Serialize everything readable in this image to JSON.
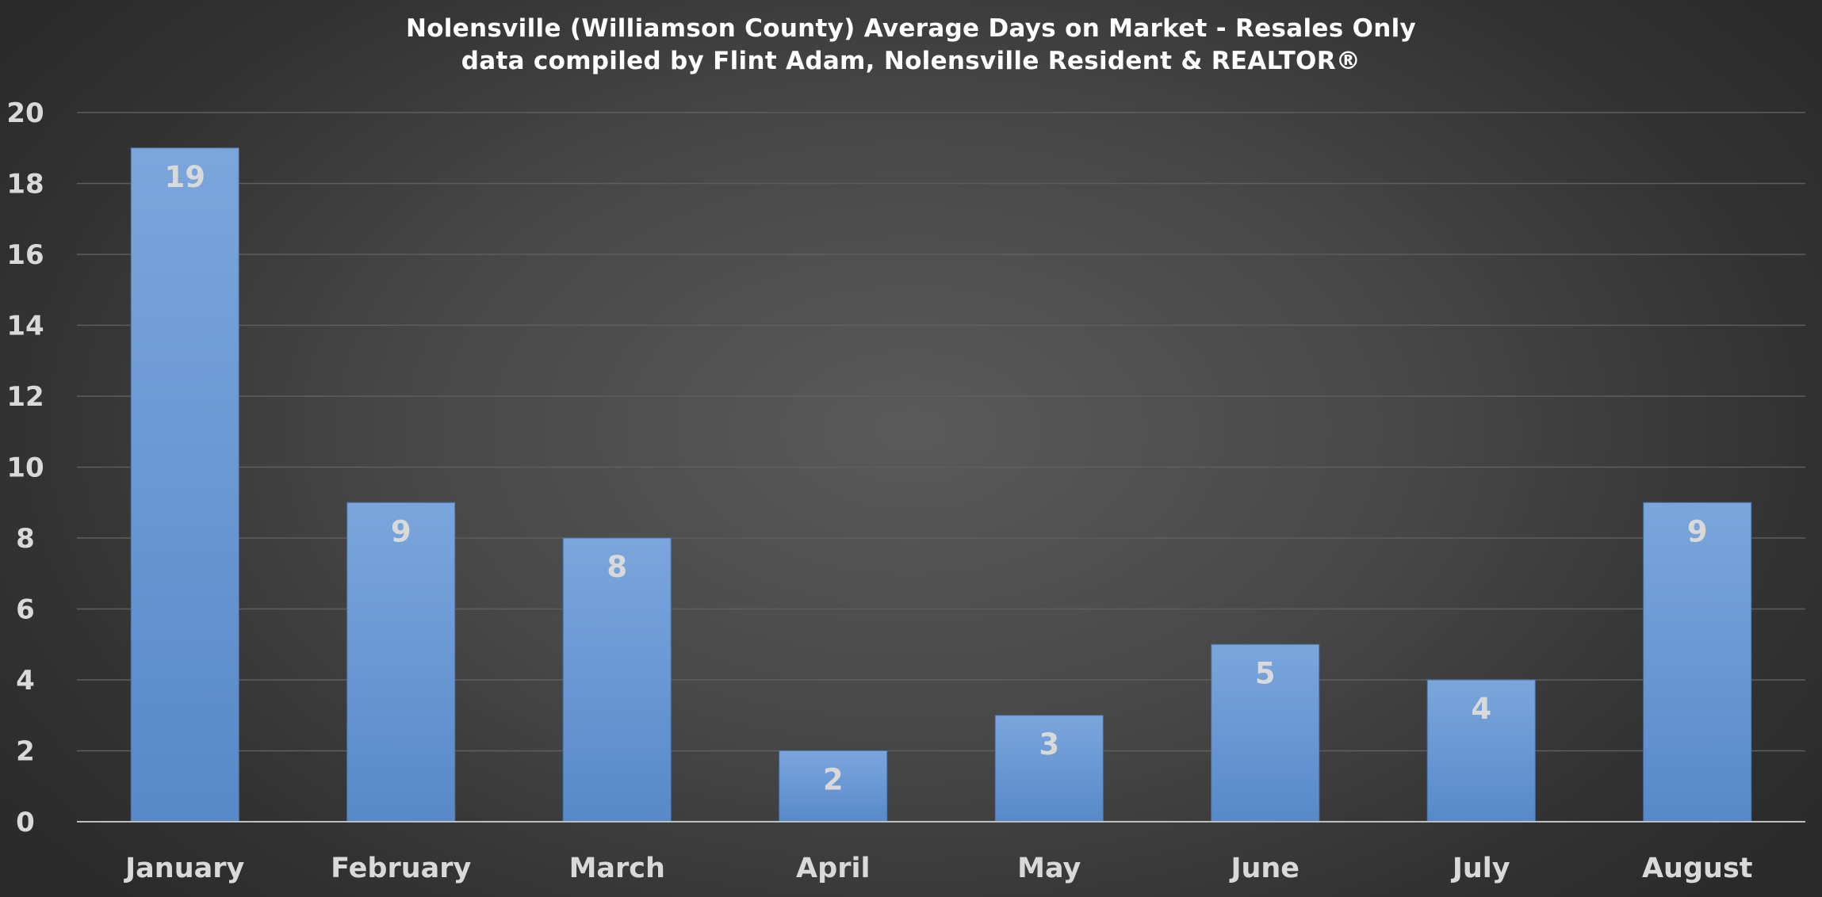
{
  "chart_data": {
    "type": "bar",
    "title": "Nolensville (Williamson County) Average Days on Market - Resales Only",
    "subtitle": "data compiled by Flint Adam, Nolensville Resident & REALTOR®",
    "categories": [
      "January",
      "February",
      "March",
      "April",
      "May",
      "June",
      "July",
      "August"
    ],
    "values": [
      19,
      9,
      8,
      2,
      3,
      5,
      4,
      9
    ],
    "ylim": [
      0,
      20
    ],
    "yticks": [
      0,
      2,
      4,
      6,
      8,
      10,
      12,
      14,
      16,
      18,
      20
    ],
    "grid": true,
    "legend": "none",
    "data_labels": true,
    "colors": {
      "bar_top": "#7ba6dc",
      "bar_bottom": "#5789c9",
      "grid": "#5e5e5e",
      "axis": "#bfbfbf",
      "text": "#d9d9d9",
      "title": "#ffffff"
    }
  }
}
